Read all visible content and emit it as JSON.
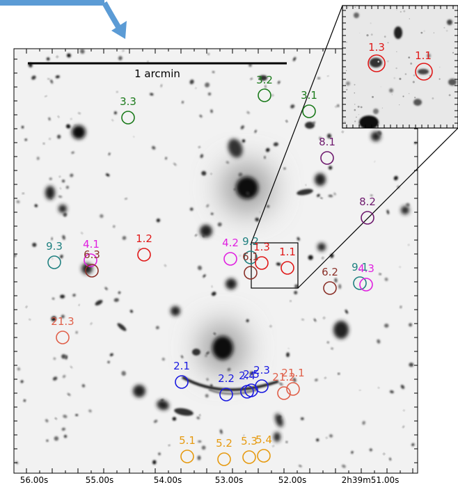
{
  "scale_bar": {
    "label": "1 arcmin"
  },
  "x_ticks": [
    "56.00s",
    "55.00s",
    "54.00s",
    "53.00s",
    "52.00s",
    "2h39m51.00s"
  ],
  "colors": {
    "green": "#1b7a1b",
    "purple": "#6e1a6e",
    "teal": "#1f8080",
    "magenta": "#e020e0",
    "red": "#e01818",
    "brown": "#8a3028",
    "salmon": "#e0604a",
    "blue": "#1a1ae0",
    "orange": "#e69a10",
    "arrow": "#5b9bd5"
  },
  "markers": [
    {
      "label": "3.3",
      "color": "green"
    },
    {
      "label": "3.2",
      "color": "green"
    },
    {
      "label": "3.1",
      "color": "green"
    },
    {
      "label": "8.1",
      "color": "purple"
    },
    {
      "label": "8.2",
      "color": "purple"
    },
    {
      "label": "9.3",
      "color": "teal"
    },
    {
      "label": "4.1",
      "color": "magenta"
    },
    {
      "label": "6.3",
      "color": "brown"
    },
    {
      "label": "1.2",
      "color": "red"
    },
    {
      "label": "4.2",
      "color": "magenta"
    },
    {
      "label": "9.2",
      "color": "teal"
    },
    {
      "label": "6.1",
      "color": "brown"
    },
    {
      "label": "1.3",
      "color": "red"
    },
    {
      "label": "1.1",
      "color": "red"
    },
    {
      "label": "6.2",
      "color": "brown"
    },
    {
      "label": "9.1",
      "color": "teal"
    },
    {
      "label": "4.3",
      "color": "magenta"
    },
    {
      "label": "21.3",
      "color": "salmon"
    },
    {
      "label": "2.1",
      "color": "blue"
    },
    {
      "label": "2.2",
      "color": "blue"
    },
    {
      "label": "2.4",
      "color": "blue"
    },
    {
      "label": "2.5",
      "color": "blue"
    },
    {
      "label": "2.3",
      "color": "blue"
    },
    {
      "label": "21.2",
      "color": "salmon"
    },
    {
      "label": "21.1",
      "color": "salmon"
    },
    {
      "label": "5.1",
      "color": "orange"
    },
    {
      "label": "5.2",
      "color": "orange"
    },
    {
      "label": "5.3",
      "color": "orange"
    },
    {
      "label": "5.4",
      "color": "orange"
    }
  ],
  "inset_markers": [
    {
      "label": "1.3",
      "color": "red"
    },
    {
      "label": "1.1",
      "color": "red"
    }
  ]
}
